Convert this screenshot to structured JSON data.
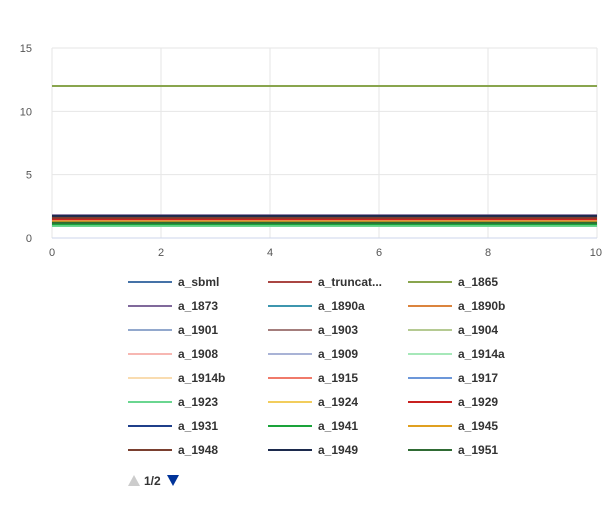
{
  "chart_data": {
    "type": "line",
    "title": "",
    "xlabel": "",
    "ylabel": "",
    "xlim": [
      0,
      10
    ],
    "ylim": [
      0,
      15
    ],
    "x_ticks": [
      "0",
      "2",
      "4",
      "6",
      "8",
      "10"
    ],
    "y_ticks": [
      "0",
      "5",
      "10",
      "15"
    ],
    "grid": true,
    "legend_position": "bottom",
    "legend_page": "1/2",
    "x": [
      0,
      10
    ],
    "series": [
      {
        "name": "a_sbml",
        "color": "#4572a7",
        "values": [
          1.0,
          1.0
        ]
      },
      {
        "name": "a_truncat...",
        "color": "#aa4643",
        "values": [
          1.5,
          1.5
        ]
      },
      {
        "name": "a_1865",
        "color": "#89a54e",
        "values": [
          12.0,
          12.0
        ]
      },
      {
        "name": "a_1873",
        "color": "#80699b",
        "values": [
          1.8,
          1.8
        ]
      },
      {
        "name": "a_1890a",
        "color": "#3d96ae",
        "values": [
          1.2,
          1.2
        ]
      },
      {
        "name": "a_1890b",
        "color": "#db843d",
        "values": [
          1.3,
          1.3
        ]
      },
      {
        "name": "a_1901",
        "color": "#92a8cd",
        "values": [
          1.1,
          1.1
        ]
      },
      {
        "name": "a_1903",
        "color": "#a47d7c",
        "values": [
          1.6,
          1.6
        ]
      },
      {
        "name": "a_1904",
        "color": "#b5ca92",
        "values": [
          1.4,
          1.4
        ]
      },
      {
        "name": "a_1908",
        "color": "#f7b7b2",
        "values": [
          1.25,
          1.25
        ]
      },
      {
        "name": "a_1909",
        "color": "#a9b3d6",
        "values": [
          1.35,
          1.35
        ]
      },
      {
        "name": "a_1914a",
        "color": "#a6e8b9",
        "values": [
          1.05,
          1.05
        ]
      },
      {
        "name": "a_1914b",
        "color": "#f9dcb0",
        "values": [
          1.15,
          1.15
        ]
      },
      {
        "name": "a_1915",
        "color": "#f07a6a",
        "values": [
          1.45,
          1.45
        ]
      },
      {
        "name": "a_1917",
        "color": "#6c97d9",
        "values": [
          1.3,
          1.3
        ]
      },
      {
        "name": "a_1923",
        "color": "#6ad690",
        "values": [
          0.95,
          0.95
        ]
      },
      {
        "name": "a_1924",
        "color": "#f2cd5c",
        "values": [
          1.2,
          1.2
        ]
      },
      {
        "name": "a_1929",
        "color": "#c8201f",
        "values": [
          1.5,
          1.5
        ]
      },
      {
        "name": "a_1931",
        "color": "#1f3f8a",
        "values": [
          1.7,
          1.7
        ]
      },
      {
        "name": "a_1941",
        "color": "#1aa33a",
        "values": [
          1.1,
          1.1
        ]
      },
      {
        "name": "a_1945",
        "color": "#e0a020",
        "values": [
          1.3,
          1.3
        ]
      },
      {
        "name": "a_1948",
        "color": "#7a3f2f",
        "values": [
          1.6,
          1.6
        ]
      },
      {
        "name": "a_1949",
        "color": "#1c2a4d",
        "values": [
          1.75,
          1.75
        ]
      },
      {
        "name": "a_1951",
        "color": "#2f6b34",
        "values": [
          1.2,
          1.2
        ]
      }
    ]
  },
  "colors": {
    "grid": "#e6e6e6",
    "axis": "#ccd6eb",
    "pager_up_disabled": "#cccccc",
    "pager_down_active": "#003399"
  }
}
